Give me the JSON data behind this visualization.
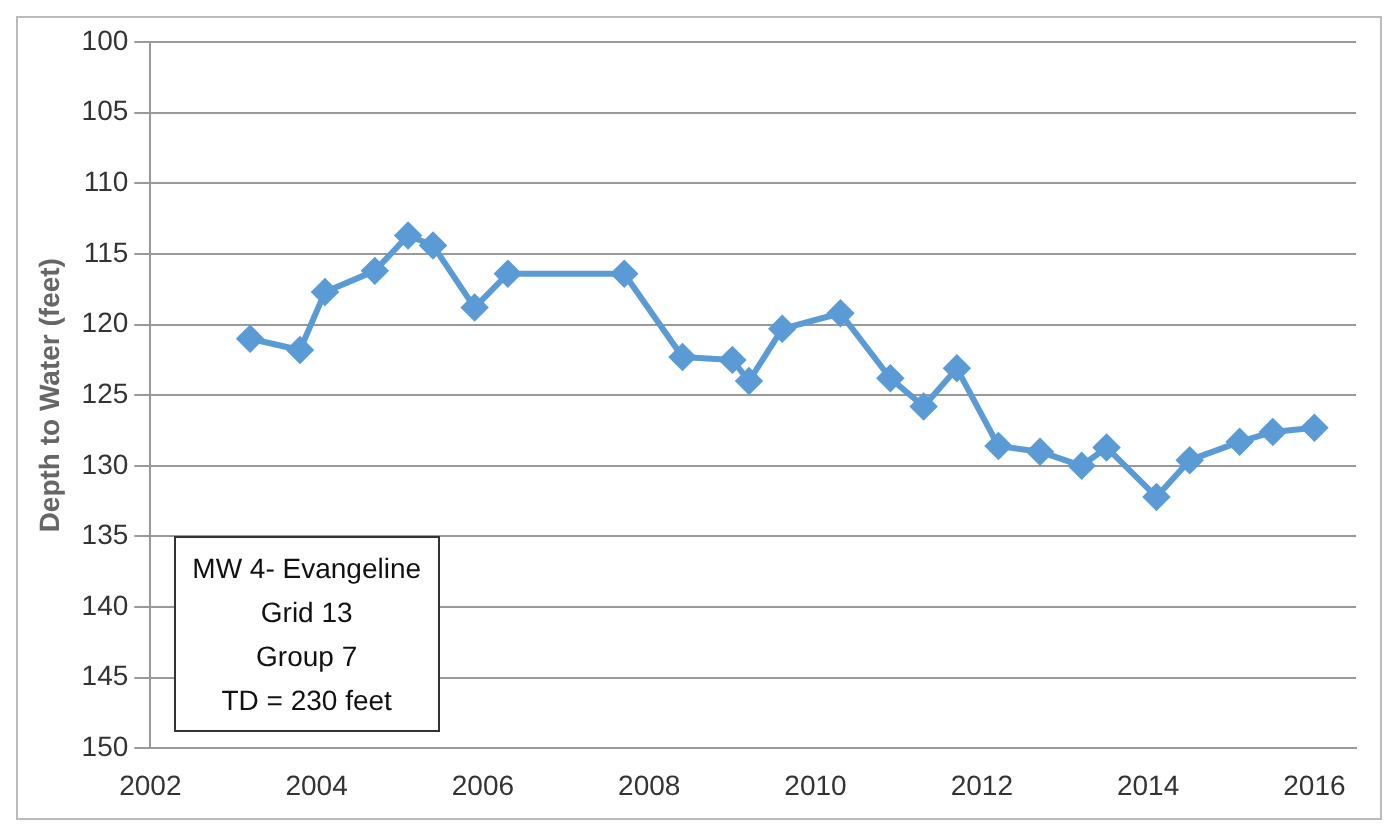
{
  "chart_data": {
    "type": "line",
    "ylabel": "Depth to Water (feet)",
    "x": [
      2003.2,
      2003.8,
      2004.1,
      2004.7,
      2005.1,
      2005.4,
      2005.9,
      2006.3,
      2007.7,
      2008.4,
      2009.0,
      2009.2,
      2009.6,
      2010.3,
      2010.9,
      2011.3,
      2011.7,
      2012.2,
      2012.7,
      2013.2,
      2013.5,
      2014.1,
      2014.5,
      2015.1,
      2015.5,
      2016.0
    ],
    "series": [
      {
        "color": "#5b9bd5",
        "values": [
          121.0,
          121.8,
          117.7,
          116.2,
          113.7,
          114.4,
          118.8,
          116.4,
          116.4,
          122.3,
          122.5,
          124.0,
          120.3,
          119.2,
          123.8,
          125.8,
          123.1,
          128.6,
          129.0,
          130.0,
          128.7,
          132.2,
          129.6,
          128.3,
          127.6,
          127.3
        ]
      }
    ],
    "xlim": [
      2002,
      2016.5
    ],
    "xticks": [
      2002,
      2004,
      2006,
      2008,
      2010,
      2012,
      2014,
      2016
    ],
    "ylim": [
      150,
      100
    ],
    "yticks": [
      100,
      105,
      110,
      115,
      120,
      125,
      130,
      135,
      140,
      145,
      150
    ],
    "grid": "y",
    "legend": false,
    "marker": "diamond",
    "line_style": "solid",
    "annotations": [
      "MW 4- Evangeline",
      "Grid 13",
      "Group 7",
      "TD = 230 feet"
    ]
  }
}
